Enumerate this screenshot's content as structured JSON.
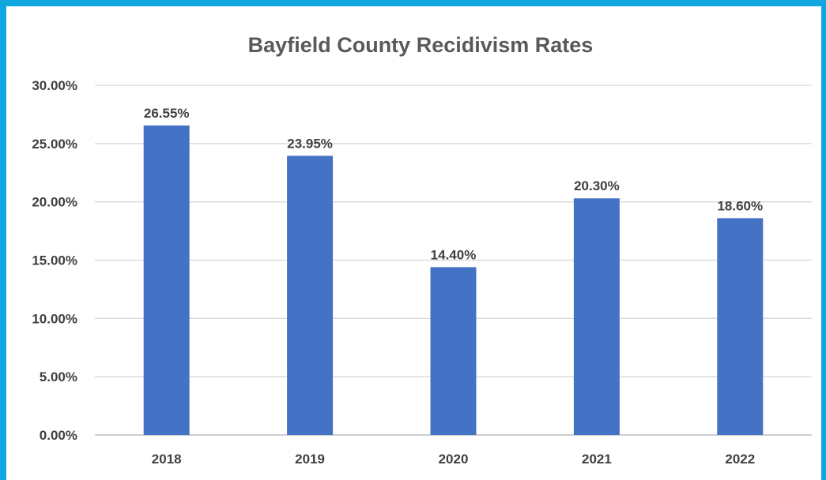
{
  "chart_data": {
    "type": "bar",
    "title": "Bayfield County Recidivism Rates",
    "xlabel": "",
    "ylabel": "",
    "categories": [
      "2018",
      "2019",
      "2020",
      "2021",
      "2022"
    ],
    "values": [
      26.55,
      23.95,
      14.4,
      20.3,
      18.6
    ],
    "data_labels": [
      "26.55%",
      "23.95%",
      "14.40%",
      "20.30%",
      "18.60%"
    ],
    "ylim": [
      0,
      30
    ],
    "yticks": [
      0,
      5,
      10,
      15,
      20,
      25,
      30
    ],
    "ytick_labels": [
      "0.00%",
      "5.00%",
      "10.00%",
      "15.00%",
      "20.00%",
      "25.00%",
      "30.00%"
    ],
    "bar_color": "#4472c4",
    "grid": true,
    "legend": "none"
  },
  "frame_color": "#10a6e0"
}
